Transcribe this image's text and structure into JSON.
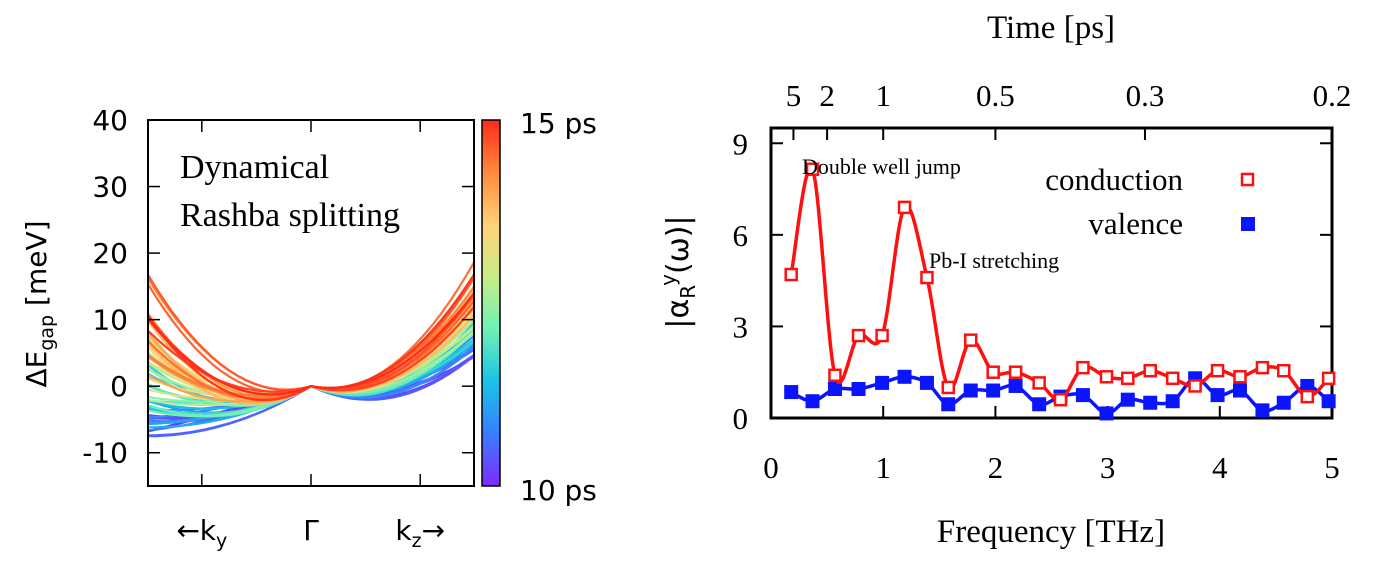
{
  "chart_data": [
    {
      "type": "line",
      "panel": "left",
      "title_lines": [
        "Dynamical",
        "Rashba splitting"
      ],
      "ylabel_main": "ΔE",
      "ylabel_sub": "gap",
      "ylabel_unit": "[meV]",
      "ylim": [
        -15,
        40
      ],
      "yticks": [
        -10,
        0,
        10,
        20,
        30,
        40
      ],
      "yticklabels": [
        "-10",
        "0",
        "10",
        "20",
        "30",
        "40"
      ],
      "xlim": [
        -1,
        1
      ],
      "xticks": [
        -0.67,
        0,
        0.67
      ],
      "xticklabels": [
        {
          "arrow_before": "←",
          "main": "k",
          "sub": "y",
          "arrow_after": ""
        },
        {
          "arrow_before": "",
          "main": "Γ",
          "sub": "",
          "arrow_after": ""
        },
        {
          "arrow_before": "",
          "main": "k",
          "sub": "z",
          "arrow_after": "→"
        }
      ],
      "colorbar": {
        "label_top": "15 ps",
        "label_bottom": "10 ps",
        "colors": [
          "#7b2cff",
          "#3a7dff",
          "#19c3e6",
          "#6ff0b8",
          "#c9ec85",
          "#ffd27a",
          "#ff8a3d",
          "#ff2a1a"
        ]
      },
      "series_summary": {
        "count": 60,
        "left_endpoint_range_meV": [
          -10,
          18
        ],
        "right_endpoint_range_meV": [
          3,
          21
        ],
        "note": "parabolic band-gap curves meeting at 0 meV at Gamma, colored by time 10–15 ps"
      }
    },
    {
      "type": "line",
      "panel": "right",
      "xlabel": "Frequency [THz]",
      "top_xlabel": "Time [ps]",
      "ylabel_main": "|α",
      "ylabel_sub": "R",
      "ylabel_sup": "y",
      "ylabel_tail": "(ω)|",
      "xlim": [
        0,
        5
      ],
      "ylim": [
        0,
        9.5
      ],
      "xticks": [
        0,
        1,
        2,
        3,
        4,
        5
      ],
      "xticklabels": [
        "0",
        "1",
        "2",
        "3",
        "4",
        "5"
      ],
      "yticks": [
        0,
        3,
        6,
        9
      ],
      "yticklabels": [
        "0",
        "3",
        "6",
        "9"
      ],
      "top_ticks": [
        {
          "label": "5",
          "freq": 0.2
        },
        {
          "label": "2",
          "freq": 0.5
        },
        {
          "label": "1",
          "freq": 1.0
        },
        {
          "label": "0.5",
          "freq": 2.0
        },
        {
          "label": "0.3",
          "freq": 3.333
        },
        {
          "label": "0.2",
          "freq": 5.0
        }
      ],
      "annotations": [
        {
          "text": "Double well jump",
          "x": 0.3,
          "y": 8.9
        },
        {
          "text": "Pb-I stretching",
          "x": 1.4,
          "y": 5.5
        }
      ],
      "legend": {
        "position": "top-right"
      },
      "series": [
        {
          "name": "conduction",
          "color": "#ff1010",
          "marker": "open-square",
          "x": [
            0.18,
            0.37,
            0.57,
            0.78,
            0.99,
            1.19,
            1.39,
            1.58,
            1.78,
            1.98,
            2.18,
            2.39,
            2.58,
            2.78,
            2.99,
            3.18,
            3.38,
            3.58,
            3.78,
            3.98,
            4.18,
            4.38,
            4.57,
            4.78,
            4.97
          ],
          "values": [
            4.7,
            8.15,
            1.4,
            2.7,
            2.7,
            6.9,
            4.6,
            1.0,
            2.55,
            1.5,
            1.5,
            1.15,
            0.6,
            1.65,
            1.35,
            1.3,
            1.55,
            1.3,
            1.05,
            1.55,
            1.35,
            1.65,
            1.55,
            0.7,
            1.3
          ]
        },
        {
          "name": "valence",
          "color": "#0a14ff",
          "marker": "filled-square",
          "x": [
            0.18,
            0.37,
            0.57,
            0.78,
            0.99,
            1.19,
            1.39,
            1.58,
            1.78,
            1.98,
            2.18,
            2.39,
            2.58,
            2.78,
            2.99,
            3.18,
            3.38,
            3.58,
            3.78,
            3.98,
            4.18,
            4.38,
            4.57,
            4.78,
            4.97
          ],
          "values": [
            0.85,
            0.55,
            0.95,
            0.95,
            1.15,
            1.35,
            1.15,
            0.45,
            0.9,
            0.9,
            1.05,
            0.45,
            0.7,
            0.75,
            0.15,
            0.6,
            0.5,
            0.55,
            1.3,
            0.75,
            0.9,
            0.25,
            0.5,
            1.05,
            0.55
          ]
        }
      ]
    }
  ]
}
